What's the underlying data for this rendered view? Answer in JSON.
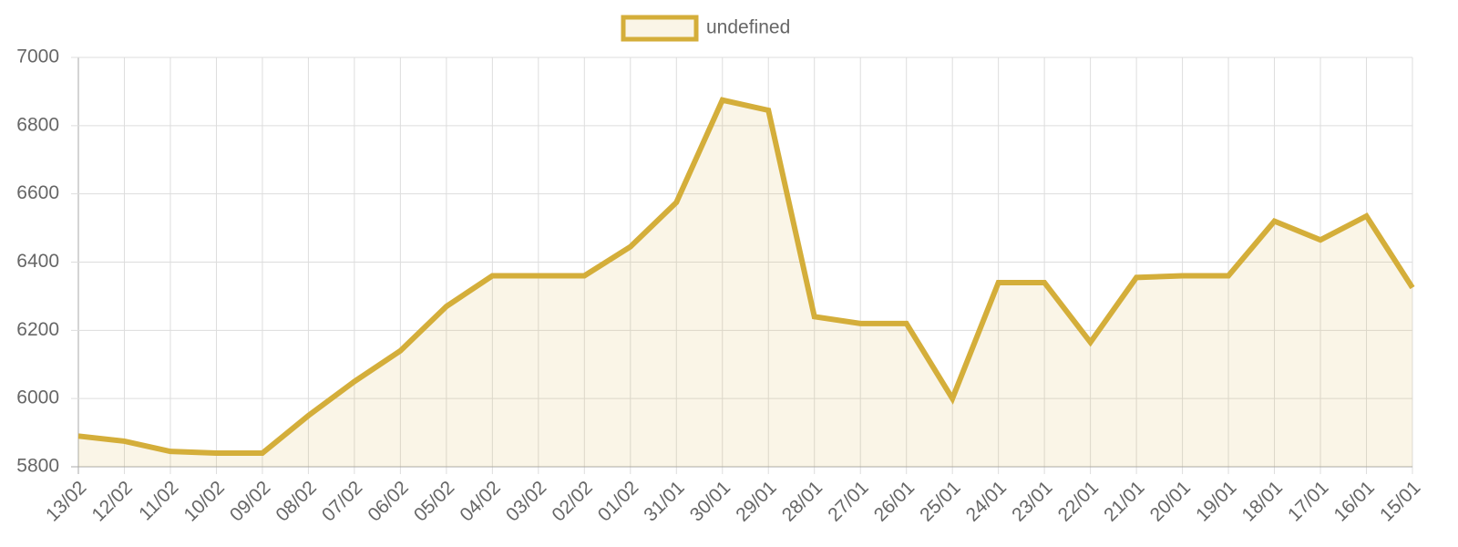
{
  "chart_data": {
    "type": "line",
    "categories": [
      "13/02",
      "12/02",
      "11/02",
      "10/02",
      "09/02",
      "08/02",
      "07/02",
      "06/02",
      "05/02",
      "04/02",
      "03/02",
      "02/02",
      "01/02",
      "31/01",
      "30/01",
      "29/01",
      "28/01",
      "27/01",
      "26/01",
      "25/01",
      "24/01",
      "23/01",
      "22/01",
      "21/01",
      "20/01",
      "19/01",
      "18/01",
      "17/01",
      "16/01",
      "15/01"
    ],
    "series": [
      {
        "name": "undefined",
        "color": "#d4ae3a",
        "fill": "rgba(212,174,58,0.12)",
        "values": [
          5890,
          5875,
          5845,
          5840,
          5840,
          5950,
          6050,
          6140,
          6270,
          6360,
          6360,
          6360,
          6445,
          6575,
          6875,
          6845,
          6240,
          6220,
          6220,
          6000,
          6340,
          6340,
          6165,
          6355,
          6360,
          6360,
          6520,
          6465,
          6535,
          6325
        ]
      }
    ],
    "ylim": [
      5800,
      7000
    ],
    "yticks": [
      5800,
      6000,
      6200,
      6400,
      6600,
      6800,
      7000
    ],
    "grid": true,
    "legend": "top"
  }
}
